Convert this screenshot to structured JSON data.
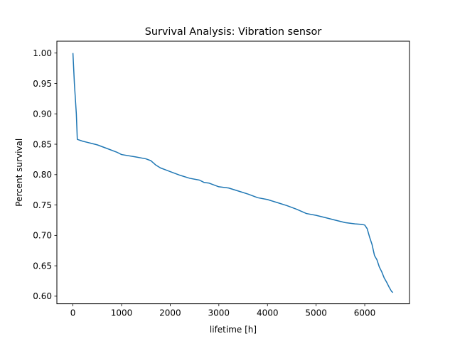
{
  "chart_data": {
    "type": "line",
    "title": "Survival Analysis: Vibration sensor",
    "xlabel": "lifetime [h]",
    "ylabel": "Percent survival",
    "xlim": [
      -330,
      6920
    ],
    "ylim": [
      0.5875,
      1.0195
    ],
    "xticks": [
      0,
      1000,
      2000,
      3000,
      4000,
      5000,
      6000
    ],
    "xtick_labels": [
      "0",
      "1000",
      "2000",
      "3000",
      "4000",
      "5000",
      "6000"
    ],
    "yticks": [
      0.6,
      0.65,
      0.7,
      0.75,
      0.8,
      0.85,
      0.9,
      0.95,
      1.0
    ],
    "ytick_labels": [
      "0.60",
      "0.65",
      "0.70",
      "0.75",
      "0.80",
      "0.85",
      "0.90",
      "0.95",
      "1.00"
    ],
    "grid": false,
    "legend": "none",
    "series_color": "#1f77b4",
    "series": [
      {
        "x": [
          0,
          30,
          70,
          90,
          200,
          300,
          500,
          700,
          900,
          1000,
          1300,
          1500,
          1600,
          1700,
          1800,
          1900,
          2000,
          2200,
          2400,
          2600,
          2700,
          2800,
          3000,
          3200,
          3400,
          3600,
          3800,
          4000,
          4200,
          4400,
          4600,
          4800,
          5000,
          5200,
          5400,
          5600,
          5800,
          5950,
          6000,
          6050,
          6100,
          6150,
          6200,
          6250,
          6300,
          6350,
          6400,
          6450,
          6500,
          6550,
          6580
        ],
        "y": [
          1.0,
          0.95,
          0.9,
          0.858,
          0.855,
          0.853,
          0.849,
          0.843,
          0.837,
          0.833,
          0.829,
          0.826,
          0.823,
          0.816,
          0.811,
          0.808,
          0.805,
          0.799,
          0.794,
          0.791,
          0.787,
          0.786,
          0.78,
          0.778,
          0.773,
          0.768,
          0.762,
          0.759,
          0.754,
          0.749,
          0.743,
          0.736,
          0.733,
          0.729,
          0.725,
          0.721,
          0.719,
          0.718,
          0.717,
          0.711,
          0.697,
          0.685,
          0.667,
          0.66,
          0.648,
          0.64,
          0.63,
          0.623,
          0.615,
          0.608,
          0.606
        ]
      }
    ]
  }
}
